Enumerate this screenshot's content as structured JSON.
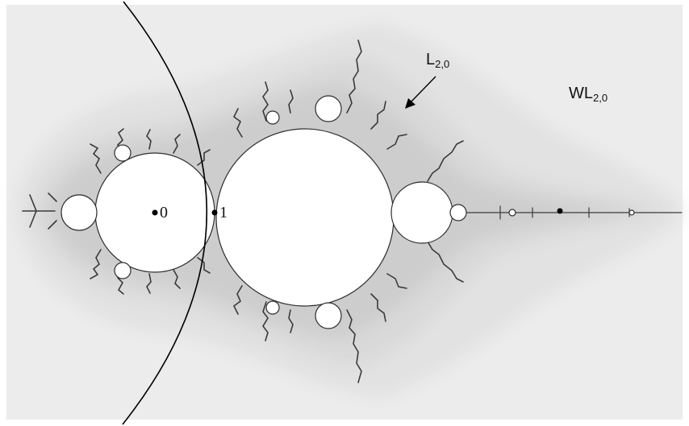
{
  "labels": {
    "L": {
      "main": "L",
      "sub": "2,0"
    },
    "WL": {
      "main": "WL",
      "sub": "2,0"
    },
    "zero": "0",
    "one": "1"
  },
  "colors": {
    "outer_bg": "#ececec",
    "band_1": "#e2e2e2",
    "band_2": "#d9d9d9",
    "band_3": "#cdcdcd",
    "set_fill": "#ffffff",
    "fractal_edge": "#3a3a3a",
    "curve": "#000000",
    "points": "#000000"
  }
}
